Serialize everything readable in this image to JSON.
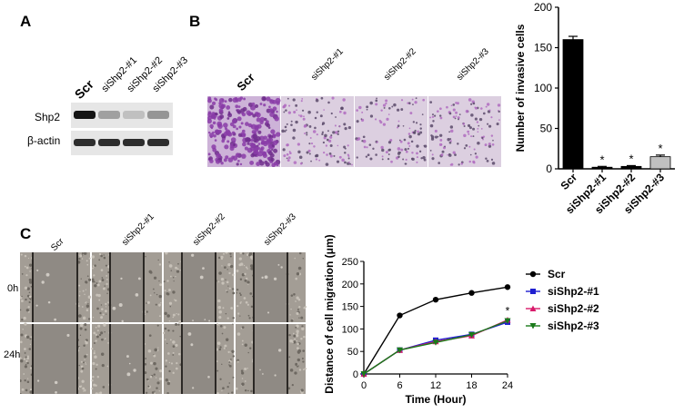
{
  "panels": {
    "A": {
      "letter": "A",
      "lanes": [
        "Scr",
        "siShp2-#1",
        "siShp2-#2",
        "siShp2-#3"
      ],
      "rows": [
        "Shp2",
        "β-actin"
      ],
      "shp2_levels": [
        1.0,
        0.35,
        0.2,
        0.4
      ],
      "actin_levels": [
        1.0,
        1.0,
        1.0,
        1.0
      ]
    },
    "B": {
      "letter": "B",
      "images": [
        "Scr",
        "siShp2-#1",
        "siShp2-#2",
        "siShp2-#3"
      ],
      "stain_color": "#9b4fb4",
      "background_color": "#d8c8df"
    },
    "C": {
      "letter": "C",
      "columns": [
        "Scr",
        "siShp2-#1",
        "siShp2-#2",
        "siShp2-#3"
      ],
      "rows": [
        "0h",
        "24h"
      ]
    }
  },
  "chart_data": [
    {
      "type": "bar",
      "categories": [
        "Scr",
        "siShp2-#1",
        "siShp2-#2",
        "siShp2-#3"
      ],
      "values": [
        160,
        2,
        3,
        15
      ],
      "errors": [
        4,
        1,
        1,
        2
      ],
      "significance": [
        "",
        "*",
        "*",
        "*"
      ],
      "colors": [
        "#000000",
        "#000000",
        "#000000",
        "#c0c0c0"
      ],
      "ylabel": "Number of invasive cells",
      "xlabel": "",
      "ylim": [
        0,
        200
      ],
      "yticks": [
        0,
        50,
        100,
        150,
        200
      ]
    },
    {
      "type": "line",
      "x": [
        0,
        6,
        12,
        18,
        24
      ],
      "xlabel": "Time (Hour)",
      "ylabel": "Distance of cell migration (μm)",
      "xlim": [
        0,
        24
      ],
      "ylim": [
        0,
        250
      ],
      "xticks": [
        0,
        6,
        12,
        18,
        24
      ],
      "yticks": [
        0,
        50,
        100,
        150,
        200,
        250
      ],
      "annotation": "*",
      "legend_position": "right",
      "series": [
        {
          "name": "Scr",
          "values": [
            0,
            130,
            165,
            180,
            193
          ],
          "color": "#000000",
          "marker": "circle"
        },
        {
          "name": "siShp2-#1",
          "values": [
            0,
            53,
            75,
            88,
            115
          ],
          "color": "#1f1fd0",
          "marker": "square"
        },
        {
          "name": "siShp2-#2",
          "values": [
            0,
            53,
            72,
            85,
            120
          ],
          "color": "#d81a6a",
          "marker": "triangle"
        },
        {
          "name": "siShp2-#3",
          "values": [
            0,
            53,
            70,
            87,
            118
          ],
          "color": "#1a7a1a",
          "marker": "triangle-down"
        }
      ]
    }
  ]
}
